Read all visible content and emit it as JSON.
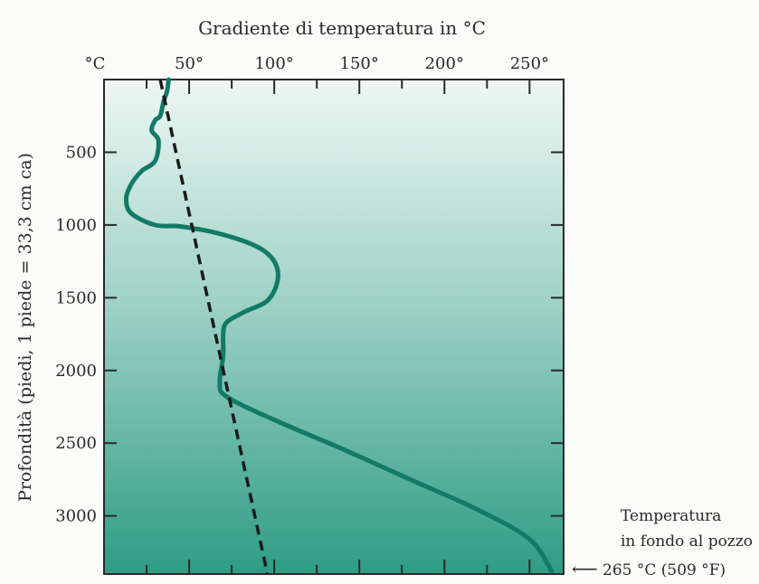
{
  "chart_data": {
    "type": "line",
    "title": "Gradiente di temperatura in °C",
    "ylabel": "Profondità (piedi, 1 piede = 33,3 cm ca)",
    "xlabel": "",
    "x_tick_labels": [
      "°C",
      "50°",
      "100°",
      "150°",
      "200°",
      "250°"
    ],
    "x_ticks": [
      0,
      50,
      100,
      150,
      200,
      250
    ],
    "y_tick_labels": [
      "500",
      "1000",
      "1500",
      "2000",
      "2500",
      "3000"
    ],
    "y_ticks": [
      500,
      1000,
      1500,
      2000,
      2500,
      3000
    ],
    "xlim": [
      0,
      270
    ],
    "ylim": [
      0,
      3400
    ],
    "y_inverted": true,
    "grid": false,
    "colors": {
      "measured": "#127a66",
      "reference": "#1a1a1a",
      "bg_top": "#eef7f4",
      "bg_bottom": "#2f9c85"
    },
    "series": [
      {
        "style": "solid",
        "x": [
          38,
          37,
          35,
          33,
          30,
          28,
          32,
          30,
          22,
          16,
          13,
          16,
          30,
          45,
          68,
          90,
          100,
          102,
          96,
          82,
          72,
          70,
          70,
          68,
          72,
          100,
          140,
          180,
          220,
          250,
          263
        ],
        "y": [
          0,
          80,
          150,
          250,
          280,
          350,
          420,
          560,
          630,
          720,
          820,
          920,
          1000,
          1010,
          1060,
          1150,
          1250,
          1380,
          1520,
          1600,
          1670,
          1750,
          1900,
          2080,
          2180,
          2340,
          2540,
          2750,
          2960,
          3160,
          3380
        ]
      },
      {
        "style": "dashed",
        "x": [
          33,
          96
        ],
        "y": [
          0,
          3400
        ]
      }
    ]
  },
  "annotation": {
    "line1": "Temperatura",
    "line2": "in fondo al pozzo",
    "line3": "265 °C (509 °F)",
    "arrow_glyph": "⟵"
  }
}
